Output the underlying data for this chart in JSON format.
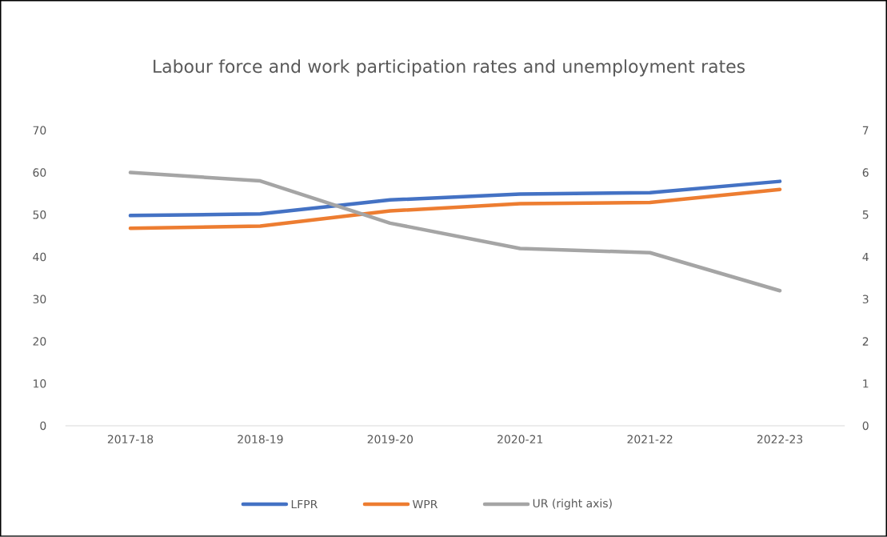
{
  "chart_data": {
    "type": "line",
    "title": "Labour force and work participation rates and unemployment rates",
    "categories": [
      "2017-18",
      "2018-19",
      "2019-20",
      "2020-21",
      "2021-22",
      "2022-23"
    ],
    "series": [
      {
        "name": "LFPR",
        "color": "#4472c4",
        "values": [
          49.8,
          50.2,
          53.5,
          54.9,
          55.2,
          57.9
        ]
      },
      {
        "name": "WPR",
        "color": "#ed7d31",
        "values": [
          46.8,
          47.3,
          50.9,
          52.6,
          52.9,
          56.0
        ]
      },
      {
        "name": "UR (right axis)",
        "color": "#a5a5a5",
        "axis": "y2",
        "values": [
          6.0,
          5.8,
          4.8,
          4.2,
          4.1,
          3.2
        ]
      }
    ],
    "ylim": [
      0,
      70
    ],
    "yticks": [
      0,
      10,
      20,
      30,
      40,
      50,
      60,
      70
    ],
    "y2lim": [
      0,
      7
    ],
    "y2ticks": [
      0,
      1,
      2,
      3,
      4,
      5,
      6,
      7
    ],
    "legend": "bottom",
    "marker": "none",
    "line_style": "solid"
  }
}
